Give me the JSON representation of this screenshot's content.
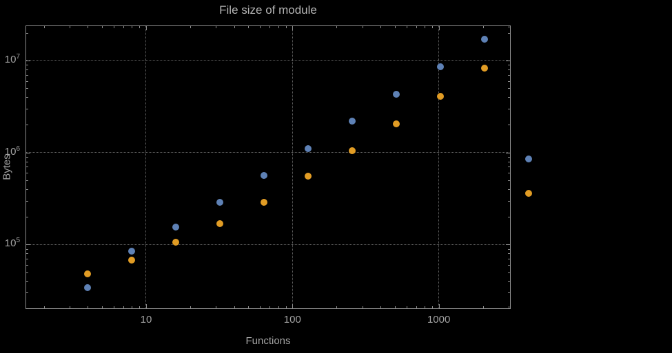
{
  "chart_data": {
    "type": "scatter",
    "title": "File size of module",
    "xlabel": "Functions",
    "ylabel": "Bytes",
    "xscale": "log",
    "yscale": "log",
    "xlim": [
      1.5,
      3100
    ],
    "ylim": [
      20000,
      24000000
    ],
    "xticks": [
      10,
      100,
      1000
    ],
    "yticks": [
      100000,
      1000000,
      10000000
    ],
    "grid": "dotted-major",
    "legend_position": "none",
    "series": [
      {
        "name": "series-1-blue",
        "color": "#5e81b5",
        "points": [
          [
            4,
            34000
          ],
          [
            8,
            85000
          ],
          [
            16,
            155000
          ],
          [
            32,
            290000
          ],
          [
            64,
            560000
          ],
          [
            128,
            1100000
          ],
          [
            256,
            2200000
          ],
          [
            512,
            4300000
          ],
          [
            1024,
            8500000
          ],
          [
            2048,
            17000000
          ],
          [
            4096,
            850000
          ]
        ]
      },
      {
        "name": "series-2-orange",
        "color": "#e19c24",
        "points": [
          [
            4,
            48000
          ],
          [
            8,
            68000
          ],
          [
            16,
            106000
          ],
          [
            32,
            170000
          ],
          [
            64,
            290000
          ],
          [
            128,
            550000
          ],
          [
            256,
            1050000
          ],
          [
            512,
            2050000
          ],
          [
            1024,
            4100000
          ],
          [
            2048,
            8200000
          ],
          [
            4096,
            360000
          ]
        ]
      }
    ]
  }
}
